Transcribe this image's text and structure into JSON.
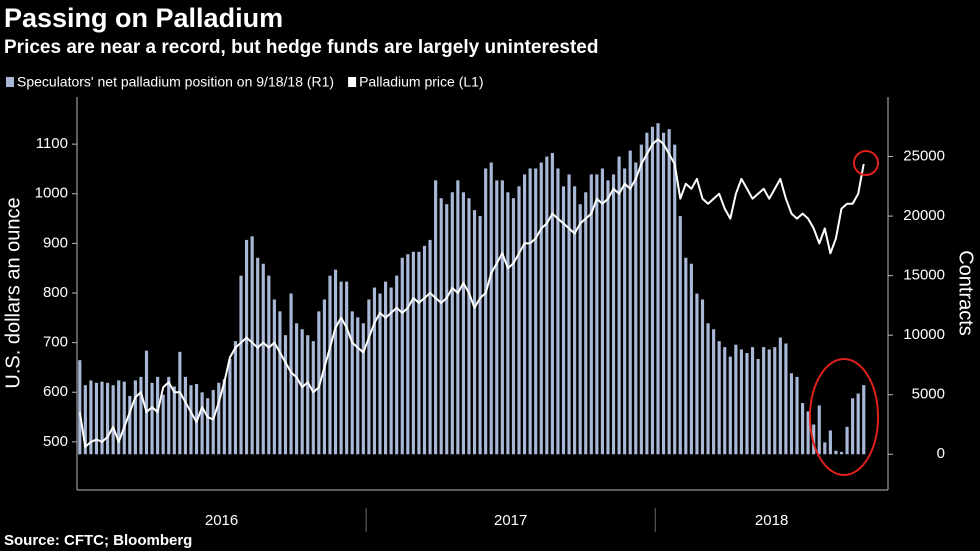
{
  "chart_data": {
    "type": "combo",
    "title": "Passing on Palladium",
    "subtitle": "Prices are near a record, but hedge funds are largely uninterested",
    "source": "Source: CFTC; Bloomberg",
    "y_label": "U.S. dollars an ounce",
    "y2_label": "Contracts",
    "x_labels": [
      "2016",
      "2017",
      "2018"
    ],
    "ylim": [
      403,
      1195
    ],
    "yticks": [
      500,
      600,
      700,
      800,
      900,
      1000,
      1100
    ],
    "y2lim": [
      -3000,
      30000
    ],
    "y2ticks": [
      0,
      5000,
      10000,
      15000,
      20000,
      25000
    ],
    "series": [
      {
        "name": "Speculators' net palladium position on 9/18/18 (R1)",
        "type": "bar",
        "axis": "y2",
        "color": "#a9b8d6",
        "values": [
          7900,
          5800,
          6200,
          6000,
          6100,
          6000,
          5800,
          6200,
          6100,
          4900,
          6200,
          6500,
          8700,
          6000,
          6500,
          5000,
          6500,
          5700,
          8600,
          6500,
          5800,
          5900,
          5200,
          4700,
          5400,
          6000,
          6300,
          8000,
          9500,
          15000,
          18000,
          18300,
          16500,
          16000,
          15000,
          13000,
          12000,
          10000,
          13500,
          11000,
          10500,
          10000,
          9500,
          12000,
          13000,
          15000,
          15500,
          14500,
          14500,
          12000,
          11500,
          11000,
          13000,
          14000,
          13500,
          14500,
          14000,
          15000,
          16500,
          16800,
          17000,
          17000,
          17500,
          18000,
          23000,
          21500,
          21000,
          22000,
          23000,
          22000,
          21500,
          20500,
          20000,
          24000,
          24500,
          23000,
          23000,
          22000,
          21500,
          22500,
          23500,
          24000,
          24000,
          24500,
          25000,
          25300,
          24000,
          22500,
          23500,
          22500,
          21000,
          22000,
          23500,
          23500,
          24000,
          23000,
          23500,
          25000,
          24000,
          25500,
          24500,
          26000,
          27000,
          27500,
          27800,
          27000,
          27300,
          26000,
          20000,
          16500,
          16000,
          13500,
          13000,
          11000,
          10500,
          9500,
          9000,
          8200,
          9200,
          8800,
          8500,
          9000,
          8000,
          9000,
          8800,
          9000,
          9800,
          9300,
          6800,
          6500,
          4300,
          3600,
          2500,
          4100,
          1000,
          2000,
          300,
          200,
          2300,
          4700,
          5100,
          5800
        ]
      },
      {
        "name": "Palladium price (L1)",
        "type": "line",
        "color": "#ffffff",
        "values": [
          560,
          490,
          500,
          505,
          500,
          510,
          530,
          500,
          530,
          560,
          590,
          600,
          560,
          570,
          560,
          610,
          620,
          600,
          600,
          580,
          560,
          540,
          570,
          550,
          545,
          580,
          620,
          670,
          690,
          700,
          710,
          700,
          690,
          700,
          690,
          700,
          680,
          660,
          640,
          630,
          610,
          620,
          600,
          610,
          650,
          690,
          730,
          750,
          730,
          700,
          690,
          680,
          710,
          740,
          760,
          750,
          760,
          770,
          760,
          770,
          790,
          780,
          790,
          800,
          790,
          780,
          790,
          810,
          800,
          820,
          800,
          770,
          790,
          800,
          840,
          860,
          880,
          850,
          860,
          880,
          900,
          900,
          910,
          930,
          940,
          960,
          950,
          940,
          930,
          920,
          940,
          950,
          960,
          990,
          980,
          990,
          1010,
          1000,
          1020,
          1010,
          1030,
          1060,
          1080,
          1100,
          1110,
          1100,
          1080,
          1060,
          990,
          1020,
          1010,
          1030,
          990,
          980,
          990,
          1000,
          970,
          950,
          1000,
          1030,
          1010,
          990,
          1000,
          1010,
          990,
          1010,
          1030,
          990,
          960,
          950,
          960,
          950,
          930,
          900,
          930,
          880,
          910,
          970,
          980,
          980,
          1000,
          1060
        ]
      }
    ]
  }
}
